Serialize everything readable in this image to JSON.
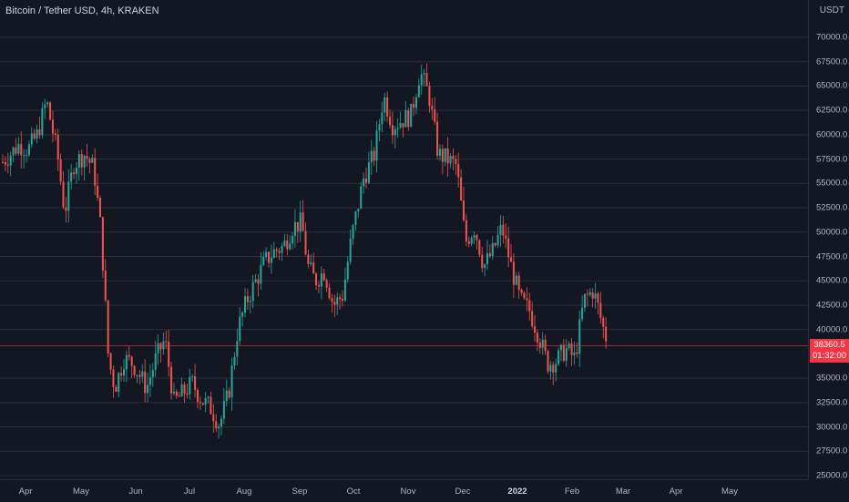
{
  "header": {
    "title": "Bitcoin / Tether USD, 4h, KRAKEN",
    "unit": "USDT"
  },
  "price_axis": {
    "ticks": [
      "70000.0",
      "67500.0",
      "65000.0",
      "62500.0",
      "60000.0",
      "57500.0",
      "55000.0",
      "52500.0",
      "50000.0",
      "47500.0",
      "45000.0",
      "42500.0",
      "40000.0",
      "35000.0",
      "32500.0",
      "30000.0",
      "27500.0",
      "25000.0"
    ],
    "current_price": "38360.5",
    "countdown": "01:32:00"
  },
  "time_axis": {
    "labels": [
      "Apr",
      "May",
      "Jun",
      "Jul",
      "Aug",
      "Sep",
      "Oct",
      "Nov",
      "Dec",
      "2022",
      "Feb",
      "Mar",
      "Apr",
      "May"
    ]
  },
  "colors": {
    "up": "#26a69a",
    "down": "#ef5350",
    "grid": "#2a2e39",
    "bg": "#131722"
  },
  "chart_data": {
    "type": "candlestick",
    "x": [
      "Mar 25",
      "Mar 30",
      "Apr 5",
      "Apr 10",
      "Apr 14",
      "Apr 18",
      "Apr 25",
      "Apr 30",
      "May 5",
      "May 10",
      "May 13",
      "May 19",
      "May 23",
      "May 27",
      "Jun 1",
      "Jun 8",
      "Jun 12",
      "Jun 16",
      "Jun 22",
      "Jun 26",
      "Jul 2",
      "Jul 8",
      "Jul 14",
      "Jul 20",
      "Jul 25",
      "Jul 30",
      "Aug 5",
      "Aug 10",
      "Aug 15",
      "Aug 20",
      "Aug 25",
      "Aug 31",
      "Sep 5",
      "Sep 7",
      "Sep 12",
      "Sep 18",
      "Sep 21",
      "Sep 28",
      "Oct 3",
      "Oct 8",
      "Oct 13",
      "Oct 20",
      "Oct 25",
      "Oct 30",
      "Nov 5",
      "Nov 10",
      "Nov 14",
      "Nov 18",
      "Nov 24",
      "Nov 30",
      "Dec 4",
      "Dec 9",
      "Dec 15",
      "Dec 20",
      "Dec 27",
      "Jan 1",
      "Jan 6",
      "Jan 12",
      "Jan 16",
      "Jan 21",
      "Jan 24",
      "Jan 28",
      "Feb 3",
      "Feb 6",
      "Feb 10",
      "Feb 14",
      "Feb 17",
      "Feb 21"
    ],
    "close": [
      57000,
      59000,
      58500,
      60000,
      63500,
      58000,
      52000,
      57000,
      58000,
      56500,
      50000,
      37000,
      34000,
      37000,
      36500,
      34000,
      37000,
      39000,
      32500,
      33500,
      34500,
      32800,
      32000,
      30200,
      33500,
      40000,
      43000,
      45000,
      47000,
      48000,
      48500,
      50500,
      51000,
      46500,
      45000,
      46000,
      42500,
      43500,
      49500,
      55500,
      58000,
      64000,
      61000,
      61500,
      62000,
      66500,
      64000,
      58000,
      57500,
      56800,
      49000,
      50500,
      46500,
      48000,
      50500,
      46500,
      43000,
      42000,
      39500,
      36500,
      36800,
      38000,
      37000,
      43000,
      44000,
      42500,
      40500,
      38360
    ],
    "ylim": [
      25000,
      72000
    ]
  }
}
